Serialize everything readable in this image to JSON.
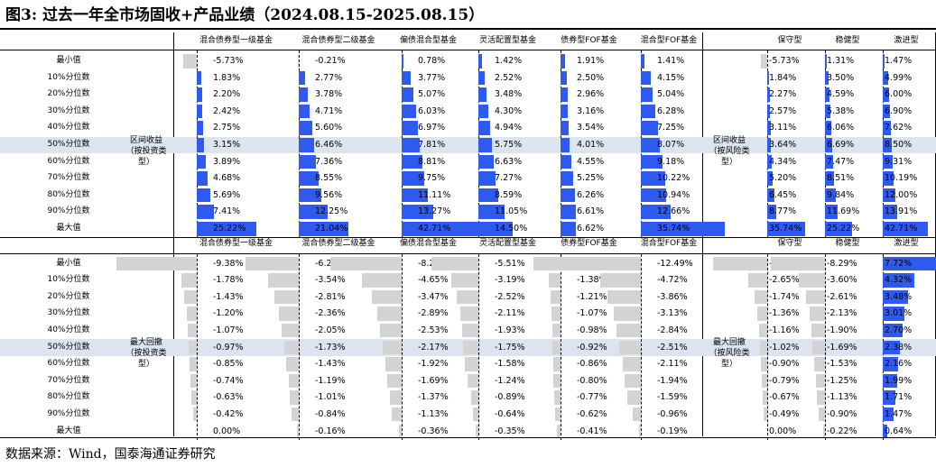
{
  "title": "图3:  过去一年全市场固收+产品业绩（2024.08.15-2025.08.15）",
  "source": "数据来源：Wind，国泰海通证券研究",
  "colors": {
    "bar_positive": "#2f5af0",
    "bar_negative": "#d3d3d3",
    "highlight": "#dbe4ef"
  },
  "row_labels": [
    "最小值",
    "10%分位数",
    "20%分位数",
    "30%分位数",
    "40%分位数",
    "50%分位数",
    "60%分位数",
    "70%分位数",
    "80%分位数",
    "90%分位数",
    "最大值"
  ],
  "highlight_row_index": 5,
  "left_columns": [
    "混合债券型一级基金",
    "混合债券型二级基金",
    "偏债混合型基金",
    "灵活配置型基金",
    "债券型FOF基金",
    "混合型FOF基金"
  ],
  "right_columns": [
    "保守型",
    "稳健型",
    "激进型"
  ],
  "sections": [
    {
      "left_group_label": "区间收益（按投资类型）",
      "right_group_label": "区间收益（按风险类型）",
      "left_values": [
        [
          "-5.73%",
          "1.83%",
          "2.20%",
          "2.42%",
          "2.75%",
          "3.15%",
          "3.89%",
          "4.68%",
          "5.69%",
          "7.41%",
          "25.22%"
        ],
        [
          "-0.21%",
          "2.77%",
          "3.78%",
          "4.71%",
          "5.60%",
          "6.46%",
          "7.36%",
          "8.55%",
          "9.56%",
          "12.25%",
          "21.04%"
        ],
        [
          "0.78%",
          "3.77%",
          "5.07%",
          "6.03%",
          "6.97%",
          "7.81%",
          "8.81%",
          "9.75%",
          "11.11%",
          "13.27%",
          "42.71%"
        ],
        [
          "1.42%",
          "2.52%",
          "3.48%",
          "4.30%",
          "4.94%",
          "5.75%",
          "6.63%",
          "7.27%",
          "8.59%",
          "11.05%",
          "14.50%"
        ],
        [
          "1.91%",
          "2.50%",
          "2.96%",
          "3.16%",
          "3.54%",
          "4.01%",
          "4.55%",
          "5.25%",
          "6.26%",
          "6.61%",
          "6.62%"
        ],
        [
          "1.41%",
          "4.15%",
          "5.04%",
          "6.28%",
          "7.25%",
          "8.07%",
          "9.18%",
          "10.22%",
          "10.94%",
          "12.66%",
          "35.74%"
        ]
      ],
      "right_values": [
        [
          "-5.73%",
          "1.84%",
          "2.27%",
          "2.57%",
          "3.11%",
          "3.64%",
          "4.34%",
          "5.20%",
          "6.45%",
          "8.77%",
          "35.74%"
        ],
        [
          "1.31%",
          "3.50%",
          "4.59%",
          "5.38%",
          "6.06%",
          "6.69%",
          "7.47%",
          "8.51%",
          "9.84%",
          "11.69%",
          "25.22%"
        ],
        [
          "1.47%",
          "4.99%",
          "6.00%",
          "6.90%",
          "7.62%",
          "8.50%",
          "9.31%",
          "10.19%",
          "12.00%",
          "13.91%",
          "42.71%"
        ]
      ]
    },
    {
      "left_group_label": "最大回撤（按投资类型）",
      "right_group_label": "最大回撤（按风险类型）",
      "left_values": [
        [
          "-9.38%",
          "-1.78%",
          "-1.43%",
          "-1.20%",
          "-1.07%",
          "-0.97%",
          "-0.85%",
          "-0.74%",
          "-0.63%",
          "-0.42%",
          "0.00%"
        ],
        [
          "-6.21%",
          "-3.54%",
          "-2.81%",
          "-2.36%",
          "-2.05%",
          "-1.73%",
          "-1.43%",
          "-1.19%",
          "-1.01%",
          "-0.84%",
          "-0.16%"
        ],
        [
          "-8.29%",
          "-4.65%",
          "-3.47%",
          "-2.89%",
          "-2.53%",
          "-2.17%",
          "-1.92%",
          "-1.69%",
          "-1.37%",
          "-1.13%",
          "-0.36%"
        ],
        [
          "-5.51%",
          "-3.19%",
          "-2.52%",
          "-2.11%",
          "-1.93%",
          "-1.75%",
          "-1.58%",
          "-1.24%",
          "-0.89%",
          "-0.64%",
          "-0.35%"
        ],
        [
          "-1.56%",
          "-1.38%",
          "-1.21%",
          "-1.07%",
          "-0.98%",
          "-0.92%",
          "-0.86%",
          "-0.80%",
          "-0.77%",
          "-0.62%",
          "-0.41%"
        ],
        [
          "-12.49%",
          "-4.72%",
          "-3.86%",
          "-3.13%",
          "-2.84%",
          "-2.51%",
          "-2.11%",
          "-1.94%",
          "-1.59%",
          "-0.96%",
          "-0.19%"
        ]
      ],
      "right_values": [
        [
          "-12.49%",
          "-2.65%",
          "-1.74%",
          "-1.36%",
          "-1.16%",
          "-1.02%",
          "-0.90%",
          "-0.79%",
          "-0.67%",
          "-0.49%",
          "0.00%"
        ],
        [
          "-8.29%",
          "-3.60%",
          "-2.61%",
          "-2.13%",
          "-1.90%",
          "-1.69%",
          "-1.53%",
          "-1.25%",
          "-1.13%",
          "-0.90%",
          "-0.22%"
        ],
        [
          "7.72%",
          "4.32%",
          "3.48%",
          "3.01%",
          "2.70%",
          "2.38%",
          "2.16%",
          "1.99%",
          "1.71%",
          "1.47%",
          "0.64%"
        ]
      ]
    }
  ]
}
